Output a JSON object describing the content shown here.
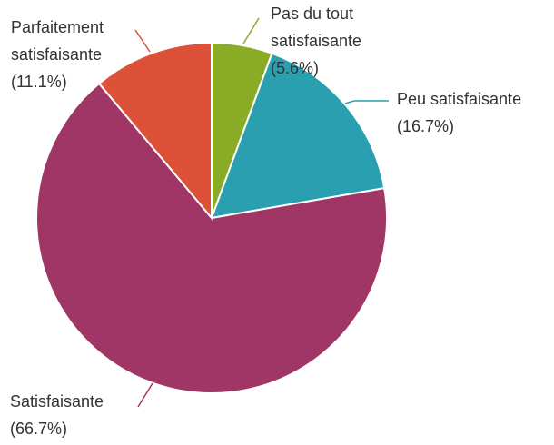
{
  "chart_data": {
    "type": "pie",
    "categories": [
      "Pas du tout satisfaisante",
      "Peu satisfaisante",
      "Satisfaisante",
      "Parfaitement satisfaisante"
    ],
    "values": [
      5.6,
      16.7,
      66.7,
      11.1
    ],
    "value_labels": [
      "(5.6%)",
      "(16.7%)",
      "(66.7%)",
      "(11.1%)"
    ],
    "colors": [
      "#8aab26",
      "#2a9fb0",
      "#a03666",
      "#dc5137"
    ]
  }
}
